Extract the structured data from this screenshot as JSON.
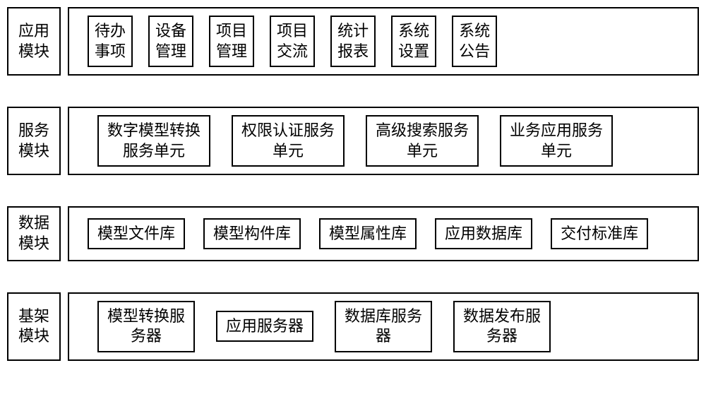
{
  "diagram": {
    "type": "block-diagram",
    "background_color": "#ffffff",
    "border_color": "#000000",
    "text_color": "#000000",
    "font_family": "SimSun",
    "font_size": 22,
    "border_width": 2,
    "rows": [
      {
        "label_line1": "应用",
        "label_line2": "模块",
        "items": [
          {
            "line1": "待办",
            "line2": "事项"
          },
          {
            "line1": "设备",
            "line2": "管理"
          },
          {
            "line1": "项目",
            "line2": "管理"
          },
          {
            "line1": "项目",
            "line2": "交流"
          },
          {
            "line1": "统计",
            "line2": "报表"
          },
          {
            "line1": "系统",
            "line2": "设置"
          },
          {
            "line1": "系统",
            "line2": "公告"
          }
        ]
      },
      {
        "label_line1": "服务",
        "label_line2": "模块",
        "items": [
          {
            "line1": "数字模型转换",
            "line2": "服务单元"
          },
          {
            "line1": "权限认证服务",
            "line2": "单元"
          },
          {
            "line1": "高级搜索服务",
            "line2": "单元"
          },
          {
            "line1": "业务应用服务",
            "line2": "单元"
          }
        ]
      },
      {
        "label_line1": "数据",
        "label_line2": "模块",
        "items": [
          {
            "line1": "模型文件库"
          },
          {
            "line1": "模型构件库"
          },
          {
            "line1": "模型属性库"
          },
          {
            "line1": "应用数据库"
          },
          {
            "line1": "交付标准库"
          }
        ]
      },
      {
        "label_line1": "基架",
        "label_line2": "模块",
        "items": [
          {
            "line1": "模型转换服",
            "line2": "务器"
          },
          {
            "line1": "应用服务器"
          },
          {
            "line1": "数据库服务",
            "line2": "器"
          },
          {
            "line1": "数据发布服",
            "line2": "务器"
          }
        ]
      }
    ]
  }
}
